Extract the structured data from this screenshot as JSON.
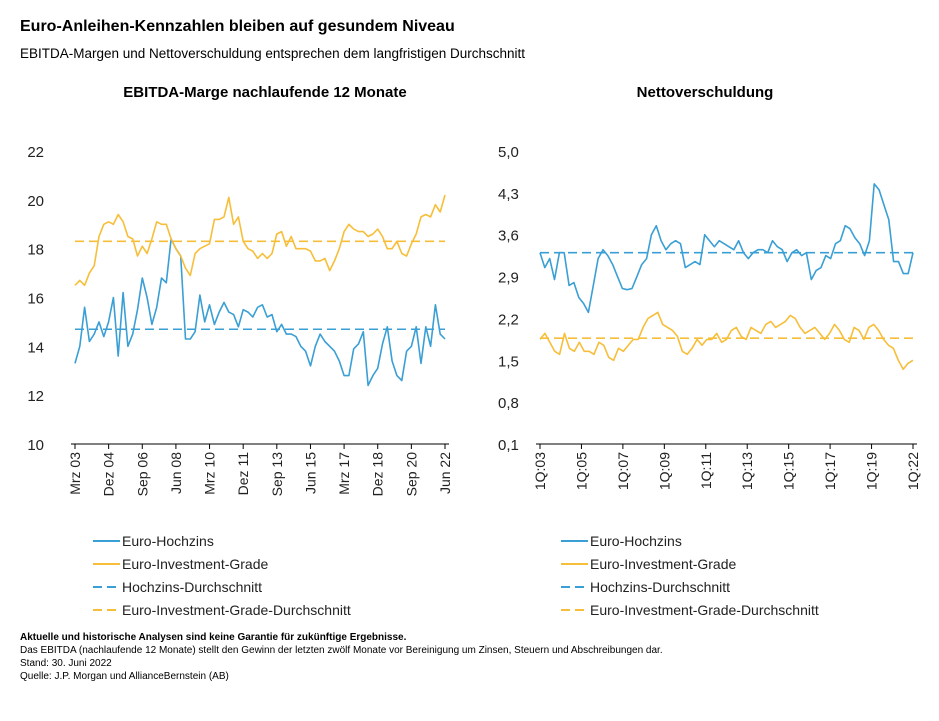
{
  "header": {
    "title": "Euro-Anleihen-Kennzahlen bleiben auf gesundem Niveau",
    "subtitle": "EBITDA-Margen und Nettoverschuldung entsprechen dem langfristigen Durchschnitt"
  },
  "colors": {
    "blue": "#3A9FD4",
    "yellow": "#F7BE3A",
    "axis": "#000000"
  },
  "chart_data": [
    {
      "type": "line",
      "title": "EBITDA-Marge nachlaufende 12 Monate",
      "ylim": [
        10,
        22
      ],
      "yticks": [
        "10",
        "12",
        "14",
        "16",
        "18",
        "20",
        "22"
      ],
      "xticks": [
        "Mrz 03",
        "Dez 04",
        "Sep 06",
        "Jun 08",
        "Mrz 10",
        "Dez 11",
        "Sep 13",
        "Jun 15",
        "Mrz 17",
        "Dez 18",
        "Sep 20",
        "Jun 22"
      ],
      "series": [
        {
          "name": "Euro-Hochzins",
          "color": "#3A9FD4",
          "dash": false,
          "values": [
            13.3,
            14.0,
            15.6,
            14.2,
            14.5,
            15.0,
            14.4,
            15.0,
            16.0,
            13.6,
            16.2,
            14.0,
            14.5,
            15.5,
            16.8,
            16.0,
            14.9,
            15.6,
            16.8,
            16.6,
            18.4,
            18.0,
            17.7,
            14.3,
            14.3,
            14.6,
            16.1,
            15.0,
            15.7,
            14.9,
            15.4,
            15.8,
            15.4,
            15.3,
            14.8,
            15.5,
            15.4,
            15.2,
            15.6,
            15.7,
            15.2,
            15.3,
            14.6,
            14.9,
            14.5,
            14.5,
            14.4,
            14.0,
            13.8,
            13.2,
            14.0,
            14.5,
            14.2,
            14.0,
            13.8,
            13.4,
            12.8,
            12.8,
            13.9,
            14.1,
            14.6,
            12.4,
            12.8,
            13.1,
            14.1,
            14.8,
            13.4,
            12.8,
            12.6,
            13.8,
            14.0,
            14.8,
            13.3,
            14.8,
            14.0,
            15.7,
            14.5,
            14.3
          ]
        },
        {
          "name": "Euro-Investment-Grade",
          "color": "#F7BE3A",
          "dash": false,
          "values": [
            16.5,
            16.7,
            16.5,
            17.0,
            17.3,
            18.5,
            19.0,
            19.1,
            19.0,
            19.4,
            19.1,
            18.5,
            18.4,
            17.7,
            18.1,
            17.8,
            18.4,
            19.1,
            19.0,
            19.0,
            18.4,
            18.0,
            17.7,
            17.2,
            16.9,
            17.8,
            18.0,
            18.1,
            18.2,
            19.2,
            19.2,
            19.3,
            20.1,
            19.0,
            19.3,
            18.3,
            18.0,
            17.9,
            17.6,
            17.8,
            17.6,
            17.8,
            18.6,
            18.7,
            18.1,
            18.5,
            18.0,
            18.0,
            18.0,
            17.9,
            17.5,
            17.5,
            17.6,
            17.1,
            17.5,
            18.0,
            18.7,
            19.0,
            18.8,
            18.7,
            18.7,
            18.5,
            18.6,
            18.8,
            18.5,
            18.0,
            18.0,
            18.3,
            17.8,
            17.7,
            18.2,
            18.6,
            19.3,
            19.4,
            19.3,
            19.8,
            19.5,
            20.2
          ]
        },
        {
          "name": "Hochzins-Durchschnitt",
          "color": "#3A9FD4",
          "dash": true,
          "value": 14.7
        },
        {
          "name": "Euro-Investment-Grade-Durchschnitt",
          "color": "#F7BE3A",
          "dash": true,
          "value": 18.3
        }
      ],
      "legend": "bottom-left"
    },
    {
      "type": "line",
      "title": "Nettoverschuldung",
      "ylim": [
        0.1,
        5.0
      ],
      "yticks": [
        "0,1",
        "0,8",
        "1,5",
        "2,2",
        "2,9",
        "3,6",
        "4,3",
        "5,0"
      ],
      "xticks": [
        "1Q:03",
        "1Q:05",
        "1Q:07",
        "1Q:09",
        "1Q:11",
        "1Q:13",
        "1Q:15",
        "1Q:17",
        "1Q:19",
        "1Q:22"
      ],
      "series": [
        {
          "name": "Euro-Hochzins",
          "color": "#3A9FD4",
          "dash": false,
          "values": [
            3.3,
            3.05,
            3.2,
            2.85,
            3.3,
            3.3,
            2.75,
            2.8,
            2.55,
            2.45,
            2.3,
            2.75,
            3.2,
            3.35,
            3.25,
            3.1,
            2.9,
            2.7,
            2.68,
            2.7,
            2.9,
            3.1,
            3.2,
            3.6,
            3.75,
            3.5,
            3.35,
            3.45,
            3.5,
            3.45,
            3.05,
            3.1,
            3.15,
            3.1,
            3.6,
            3.5,
            3.4,
            3.5,
            3.45,
            3.4,
            3.35,
            3.5,
            3.3,
            3.2,
            3.3,
            3.35,
            3.35,
            3.3,
            3.5,
            3.4,
            3.35,
            3.15,
            3.3,
            3.35,
            3.25,
            3.3,
            2.85,
            3.0,
            3.05,
            3.25,
            3.2,
            3.45,
            3.5,
            3.75,
            3.7,
            3.55,
            3.45,
            3.25,
            3.5,
            4.45,
            4.35,
            4.1,
            3.85,
            3.15,
            3.15,
            2.95,
            2.95,
            3.3
          ]
        },
        {
          "name": "Euro-Investment-Grade",
          "color": "#F7BE3A",
          "dash": false,
          "values": [
            1.85,
            1.95,
            1.8,
            1.65,
            1.6,
            1.95,
            1.7,
            1.65,
            1.8,
            1.65,
            1.65,
            1.6,
            1.8,
            1.75,
            1.55,
            1.5,
            1.7,
            1.65,
            1.75,
            1.85,
            1.85,
            2.05,
            2.2,
            2.25,
            2.3,
            2.1,
            2.05,
            2.0,
            1.9,
            1.65,
            1.6,
            1.7,
            1.85,
            1.75,
            1.85,
            1.85,
            1.95,
            1.8,
            1.85,
            2.0,
            2.05,
            1.9,
            1.85,
            2.05,
            2.0,
            1.95,
            2.1,
            2.15,
            2.05,
            2.1,
            2.15,
            2.25,
            2.2,
            2.05,
            1.95,
            2.0,
            2.05,
            1.95,
            1.85,
            1.95,
            2.1,
            2.0,
            1.85,
            1.8,
            2.05,
            2.0,
            1.85,
            2.05,
            2.1,
            2.0,
            1.85,
            1.75,
            1.7,
            1.5,
            1.35,
            1.45,
            1.5
          ]
        },
        {
          "name": "Hochzins-Durchschnitt",
          "color": "#3A9FD4",
          "dash": true,
          "value": 3.3
        },
        {
          "name": "Euro-Investment-Grade-Durchschnitt",
          "color": "#F7BE3A",
          "dash": true,
          "value": 1.87
        }
      ],
      "legend": "bottom-left"
    }
  ],
  "footer": {
    "disclaimer": "Aktuelle und historische Analysen sind keine Garantie für zukünftige Ergebnisse.",
    "note": "Das EBITDA (nachlaufende 12 Monate) stellt den Gewinn der letzten zwölf Monate vor Bereinigung um Zinsen, Steuern und Abschreibungen dar.",
    "date": "Stand: 30. Juni 2022",
    "source": "Quelle: J.P. Morgan und AllianceBernstein (AB)"
  }
}
